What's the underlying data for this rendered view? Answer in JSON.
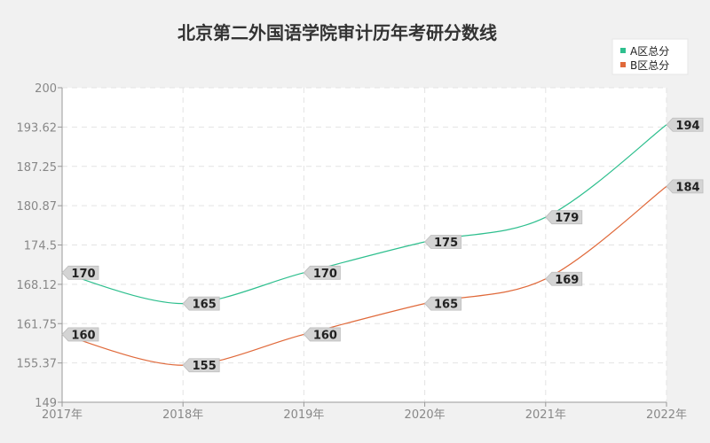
{
  "chart_data": {
    "type": "line",
    "title": "北京第二外国语学院审计历年考研分数线",
    "xlabel": "",
    "ylabel": "",
    "categories": [
      "2017年",
      "2018年",
      "2019年",
      "2020年",
      "2021年",
      "2022年"
    ],
    "series": [
      {
        "name": "A区总分",
        "values": [
          170,
          165,
          170,
          175,
          179,
          194
        ],
        "color": "#2ebf8e"
      },
      {
        "name": "B区总分",
        "values": [
          160,
          155,
          160,
          165,
          169,
          184
        ],
        "color": "#e0693a"
      }
    ],
    "y_ticks": [
      "149",
      "155.37",
      "161.75",
      "168.12",
      "174.5",
      "180.87",
      "187.25",
      "193.62",
      "200"
    ],
    "ylim": [
      149,
      200
    ],
    "grid": true,
    "legend_position": "top-right"
  }
}
